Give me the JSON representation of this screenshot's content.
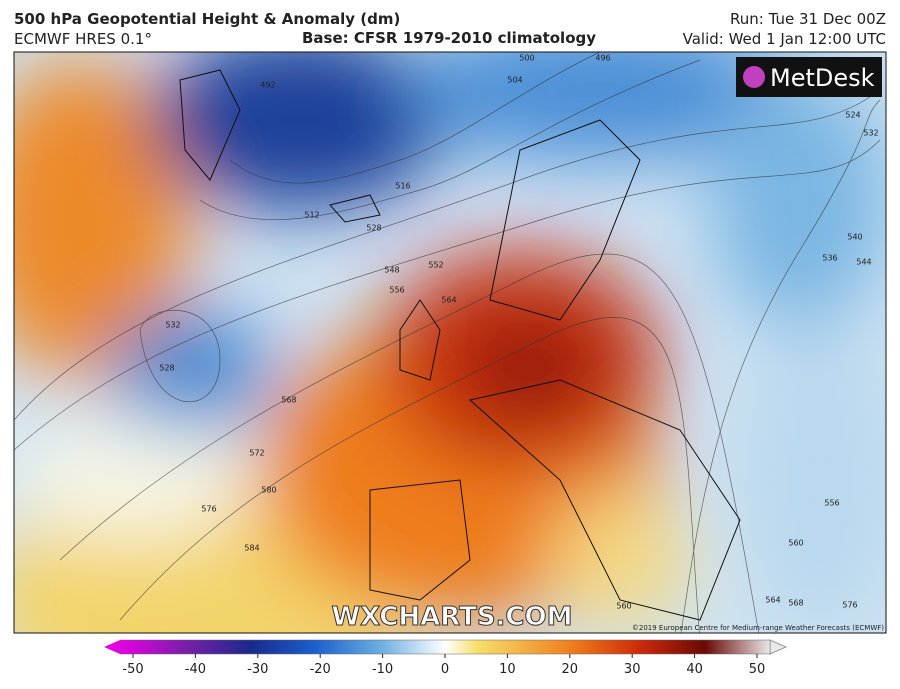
{
  "header": {
    "title": "500 hPa Geopotential Height & Anomaly (dm)",
    "model": "ECMWF HRES 0.1°",
    "base": "Base: CFSR 1979-2010 climatology",
    "run": "Run: Tue 31 Dec 00Z",
    "valid": "Valid: Wed 1 Jan 12:00 UTC"
  },
  "logo": "MetDesk",
  "watermark": "WXCHARTS.COM",
  "copyright": "©2019 European Centre for Medium-range Weather Forecasts (ECMWF)",
  "contour_labels": [
    492,
    496,
    500,
    504,
    512,
    516,
    528,
    532,
    528,
    548,
    552,
    556,
    564,
    568,
    572,
    576,
    580,
    584,
    560,
    564,
    568,
    576,
    556,
    560,
    524,
    532,
    536,
    540,
    544
  ],
  "colorbar": {
    "lim": [
      -50,
      50
    ],
    "ticks": [
      -50,
      -40,
      -30,
      -20,
      -10,
      0,
      10,
      20,
      30,
      40,
      50
    ]
  }
}
